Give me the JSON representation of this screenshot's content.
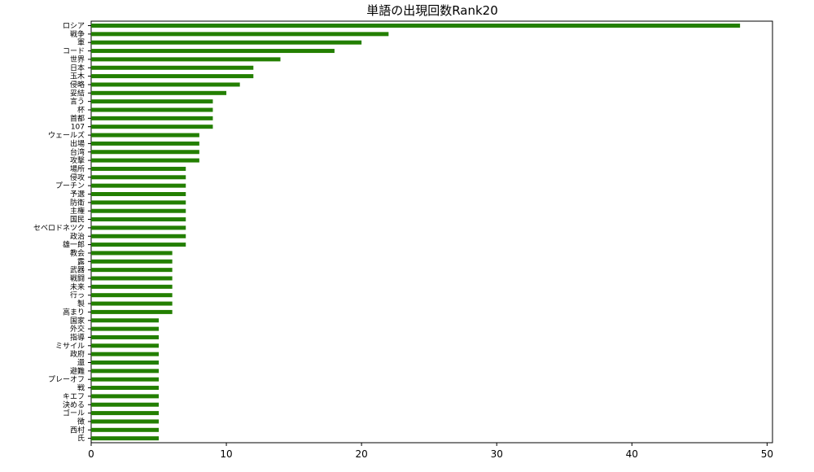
{
  "chart_data": {
    "type": "bar",
    "orientation": "horizontal",
    "title": "単語の出現回数Rank20",
    "xlabel": "",
    "ylabel": "",
    "xlim": [
      0,
      50.4
    ],
    "xticks": [
      0,
      10,
      20,
      30,
      40,
      50
    ],
    "bar_color": "#237f00",
    "categories": [
      "ロシア",
      "戦争",
      "軍",
      "コード",
      "世界",
      "日本",
      "玉木",
      "侵略",
      "妥結",
      "言う",
      "杯",
      "首都",
      "107",
      "ウェールズ",
      "出場",
      "台湾",
      "攻撃",
      "場所",
      "侵攻",
      "プーチン",
      "予選",
      "防衛",
      "主権",
      "国民",
      "セベロドネツク",
      "政治",
      "雄一郎",
      "教会",
      "露",
      "武器",
      "戦闘",
      "未来",
      "行っ",
      "製",
      "高まり",
      "国家",
      "外交",
      "指導",
      "ミサイル",
      "政府",
      "還",
      "避難",
      "プレーオフ",
      "戦",
      "キエフ",
      "決める",
      "ゴール",
      "徴",
      "西村",
      "氏"
    ],
    "values": [
      48,
      22,
      20,
      18,
      14,
      12,
      12,
      11,
      10,
      9,
      9,
      9,
      9,
      8,
      8,
      8,
      8,
      7,
      7,
      7,
      7,
      7,
      7,
      7,
      7,
      7,
      7,
      6,
      6,
      6,
      6,
      6,
      6,
      6,
      6,
      5,
      5,
      5,
      5,
      5,
      5,
      5,
      5,
      5,
      5,
      5,
      5,
      5,
      5,
      5
    ]
  }
}
